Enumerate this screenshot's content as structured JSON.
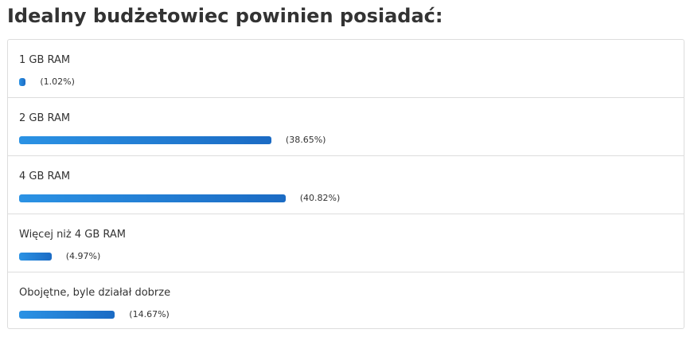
{
  "chart_data": {
    "type": "bar",
    "title": "Idealny budżetowiec powinien posiadać:",
    "categories": [
      "1 GB RAM",
      "2 GB RAM",
      "4 GB RAM",
      "Więcej niż 4 GB RAM",
      "Obojętne, byle działał dobrze"
    ],
    "values": [
      1.02,
      38.65,
      40.82,
      4.97,
      14.67
    ],
    "value_labels": [
      "(1.02%)",
      "(38.65%)",
      "(40.82%)",
      "(4.97%)",
      "(14.67%)"
    ]
  }
}
